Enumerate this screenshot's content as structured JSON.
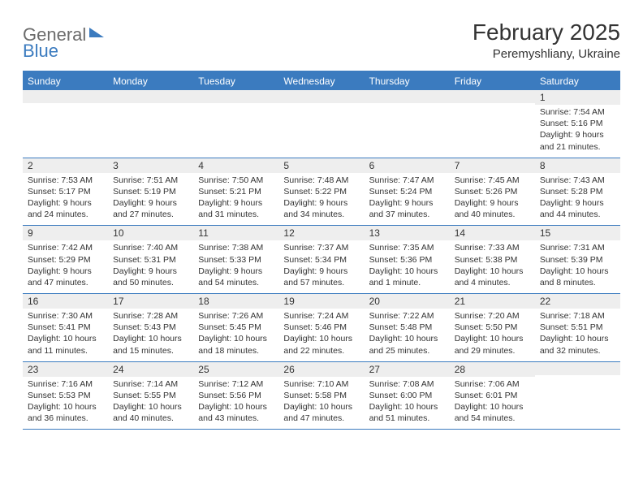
{
  "logo": {
    "part1": "General",
    "part2": "Blue"
  },
  "header": {
    "month_title": "February 2025",
    "location": "Peremyshliany, Ukraine"
  },
  "weekdays": [
    "Sunday",
    "Monday",
    "Tuesday",
    "Wednesday",
    "Thursday",
    "Friday",
    "Saturday"
  ],
  "calendar": {
    "weeks": [
      [
        {
          "blank": true
        },
        {
          "blank": true
        },
        {
          "blank": true
        },
        {
          "blank": true
        },
        {
          "blank": true
        },
        {
          "blank": true
        },
        {
          "day": "1",
          "sunrise": "Sunrise: 7:54 AM",
          "sunset": "Sunset: 5:16 PM",
          "daylight": "Daylight: 9 hours and 21 minutes."
        }
      ],
      [
        {
          "day": "2",
          "sunrise": "Sunrise: 7:53 AM",
          "sunset": "Sunset: 5:17 PM",
          "daylight": "Daylight: 9 hours and 24 minutes."
        },
        {
          "day": "3",
          "sunrise": "Sunrise: 7:51 AM",
          "sunset": "Sunset: 5:19 PM",
          "daylight": "Daylight: 9 hours and 27 minutes."
        },
        {
          "day": "4",
          "sunrise": "Sunrise: 7:50 AM",
          "sunset": "Sunset: 5:21 PM",
          "daylight": "Daylight: 9 hours and 31 minutes."
        },
        {
          "day": "5",
          "sunrise": "Sunrise: 7:48 AM",
          "sunset": "Sunset: 5:22 PM",
          "daylight": "Daylight: 9 hours and 34 minutes."
        },
        {
          "day": "6",
          "sunrise": "Sunrise: 7:47 AM",
          "sunset": "Sunset: 5:24 PM",
          "daylight": "Daylight: 9 hours and 37 minutes."
        },
        {
          "day": "7",
          "sunrise": "Sunrise: 7:45 AM",
          "sunset": "Sunset: 5:26 PM",
          "daylight": "Daylight: 9 hours and 40 minutes."
        },
        {
          "day": "8",
          "sunrise": "Sunrise: 7:43 AM",
          "sunset": "Sunset: 5:28 PM",
          "daylight": "Daylight: 9 hours and 44 minutes."
        }
      ],
      [
        {
          "day": "9",
          "sunrise": "Sunrise: 7:42 AM",
          "sunset": "Sunset: 5:29 PM",
          "daylight": "Daylight: 9 hours and 47 minutes."
        },
        {
          "day": "10",
          "sunrise": "Sunrise: 7:40 AM",
          "sunset": "Sunset: 5:31 PM",
          "daylight": "Daylight: 9 hours and 50 minutes."
        },
        {
          "day": "11",
          "sunrise": "Sunrise: 7:38 AM",
          "sunset": "Sunset: 5:33 PM",
          "daylight": "Daylight: 9 hours and 54 minutes."
        },
        {
          "day": "12",
          "sunrise": "Sunrise: 7:37 AM",
          "sunset": "Sunset: 5:34 PM",
          "daylight": "Daylight: 9 hours and 57 minutes."
        },
        {
          "day": "13",
          "sunrise": "Sunrise: 7:35 AM",
          "sunset": "Sunset: 5:36 PM",
          "daylight": "Daylight: 10 hours and 1 minute."
        },
        {
          "day": "14",
          "sunrise": "Sunrise: 7:33 AM",
          "sunset": "Sunset: 5:38 PM",
          "daylight": "Daylight: 10 hours and 4 minutes."
        },
        {
          "day": "15",
          "sunrise": "Sunrise: 7:31 AM",
          "sunset": "Sunset: 5:39 PM",
          "daylight": "Daylight: 10 hours and 8 minutes."
        }
      ],
      [
        {
          "day": "16",
          "sunrise": "Sunrise: 7:30 AM",
          "sunset": "Sunset: 5:41 PM",
          "daylight": "Daylight: 10 hours and 11 minutes."
        },
        {
          "day": "17",
          "sunrise": "Sunrise: 7:28 AM",
          "sunset": "Sunset: 5:43 PM",
          "daylight": "Daylight: 10 hours and 15 minutes."
        },
        {
          "day": "18",
          "sunrise": "Sunrise: 7:26 AM",
          "sunset": "Sunset: 5:45 PM",
          "daylight": "Daylight: 10 hours and 18 minutes."
        },
        {
          "day": "19",
          "sunrise": "Sunrise: 7:24 AM",
          "sunset": "Sunset: 5:46 PM",
          "daylight": "Daylight: 10 hours and 22 minutes."
        },
        {
          "day": "20",
          "sunrise": "Sunrise: 7:22 AM",
          "sunset": "Sunset: 5:48 PM",
          "daylight": "Daylight: 10 hours and 25 minutes."
        },
        {
          "day": "21",
          "sunrise": "Sunrise: 7:20 AM",
          "sunset": "Sunset: 5:50 PM",
          "daylight": "Daylight: 10 hours and 29 minutes."
        },
        {
          "day": "22",
          "sunrise": "Sunrise: 7:18 AM",
          "sunset": "Sunset: 5:51 PM",
          "daylight": "Daylight: 10 hours and 32 minutes."
        }
      ],
      [
        {
          "day": "23",
          "sunrise": "Sunrise: 7:16 AM",
          "sunset": "Sunset: 5:53 PM",
          "daylight": "Daylight: 10 hours and 36 minutes."
        },
        {
          "day": "24",
          "sunrise": "Sunrise: 7:14 AM",
          "sunset": "Sunset: 5:55 PM",
          "daylight": "Daylight: 10 hours and 40 minutes."
        },
        {
          "day": "25",
          "sunrise": "Sunrise: 7:12 AM",
          "sunset": "Sunset: 5:56 PM",
          "daylight": "Daylight: 10 hours and 43 minutes."
        },
        {
          "day": "26",
          "sunrise": "Sunrise: 7:10 AM",
          "sunset": "Sunset: 5:58 PM",
          "daylight": "Daylight: 10 hours and 47 minutes."
        },
        {
          "day": "27",
          "sunrise": "Sunrise: 7:08 AM",
          "sunset": "Sunset: 6:00 PM",
          "daylight": "Daylight: 10 hours and 51 minutes."
        },
        {
          "day": "28",
          "sunrise": "Sunrise: 7:06 AM",
          "sunset": "Sunset: 6:01 PM",
          "daylight": "Daylight: 10 hours and 54 minutes."
        },
        {
          "blank": true
        }
      ]
    ]
  },
  "style": {
    "header_bg": "#3b7bbf",
    "header_text": "#ffffff",
    "daynum_bg": "#eeeeee",
    "border_color": "#3b7bbf",
    "body_fontsize": 10.5,
    "title_fontsize": 28
  }
}
